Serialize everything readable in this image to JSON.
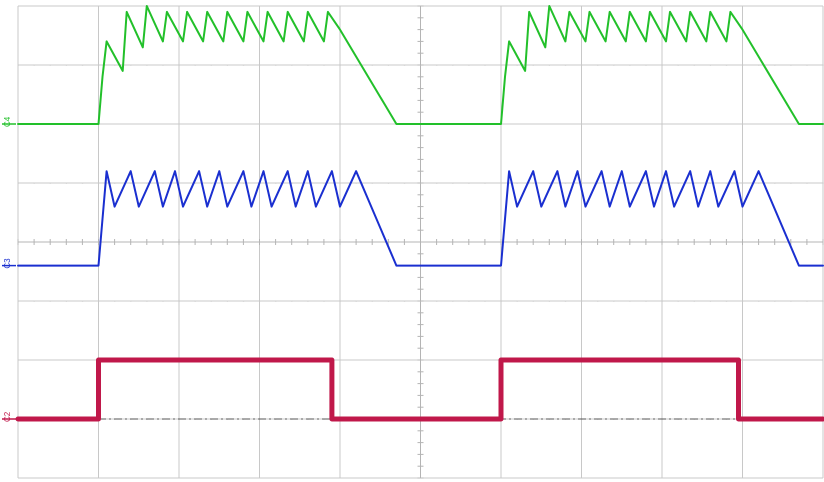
{
  "chart_data": {
    "type": "line",
    "title": "",
    "xlabel": "",
    "ylabel": "",
    "grid": true,
    "divisions": {
      "x": 10,
      "y": 8
    },
    "xlim": [
      0,
      10
    ],
    "ylim": [
      0,
      8
    ],
    "channels": [
      {
        "id": "C4",
        "label": "C4",
        "color": "#22c02a"
      },
      {
        "id": "C3",
        "label": "C3",
        "color": "#1a2fd0"
      },
      {
        "id": "C2",
        "label": "C2",
        "color": "#c0184a"
      }
    ],
    "series": [
      {
        "channel": "C4",
        "color": "#22c02a",
        "x": [
          0.0,
          1.0,
          1.05,
          1.1,
          1.3,
          1.35,
          1.55,
          1.6,
          1.8,
          1.85,
          2.05,
          2.1,
          2.3,
          2.35,
          2.55,
          2.6,
          2.8,
          2.85,
          3.05,
          3.1,
          3.3,
          3.35,
          3.55,
          3.6,
          3.8,
          3.85,
          4.0,
          4.7,
          5.0,
          6.0,
          6.05,
          6.1,
          6.3,
          6.35,
          6.55,
          6.6,
          6.8,
          6.85,
          7.05,
          7.1,
          7.3,
          7.35,
          7.55,
          7.6,
          7.8,
          7.85,
          8.05,
          8.1,
          8.3,
          8.35,
          8.55,
          8.6,
          8.8,
          8.85,
          9.0,
          9.7,
          10.0
        ],
        "y": [
          6.0,
          6.0,
          6.8,
          7.4,
          6.9,
          7.9,
          7.3,
          8.0,
          7.4,
          7.9,
          7.4,
          7.9,
          7.4,
          7.9,
          7.4,
          7.9,
          7.4,
          7.9,
          7.4,
          7.9,
          7.4,
          7.9,
          7.4,
          7.9,
          7.4,
          7.9,
          7.6,
          6.0,
          6.0,
          6.0,
          6.8,
          7.4,
          6.9,
          7.9,
          7.3,
          8.0,
          7.4,
          7.9,
          7.4,
          7.9,
          7.4,
          7.9,
          7.4,
          7.9,
          7.4,
          7.9,
          7.4,
          7.9,
          7.4,
          7.9,
          7.4,
          7.9,
          7.4,
          7.9,
          7.6,
          6.0,
          6.0
        ]
      },
      {
        "channel": "C3",
        "color": "#1a2fd0",
        "x": [
          0.0,
          1.0,
          1.1,
          1.2,
          1.4,
          1.5,
          1.7,
          1.8,
          1.95,
          2.05,
          2.25,
          2.35,
          2.5,
          2.6,
          2.8,
          2.9,
          3.05,
          3.15,
          3.35,
          3.45,
          3.6,
          3.7,
          3.9,
          4.0,
          4.2,
          4.7,
          5.0,
          6.0,
          6.1,
          6.2,
          6.4,
          6.5,
          6.7,
          6.8,
          6.95,
          7.05,
          7.25,
          7.35,
          7.5,
          7.6,
          7.8,
          7.9,
          8.05,
          8.15,
          8.35,
          8.45,
          8.6,
          8.7,
          8.9,
          9.0,
          9.2,
          9.7,
          10.0
        ],
        "y": [
          3.6,
          3.6,
          5.2,
          4.6,
          5.2,
          4.6,
          5.2,
          4.6,
          5.2,
          4.6,
          5.2,
          4.6,
          5.2,
          4.6,
          5.2,
          4.6,
          5.2,
          4.6,
          5.2,
          4.6,
          5.2,
          4.6,
          5.2,
          4.6,
          5.2,
          3.6,
          3.6,
          3.6,
          5.2,
          4.6,
          5.2,
          4.6,
          5.2,
          4.6,
          5.2,
          4.6,
          5.2,
          4.6,
          5.2,
          4.6,
          5.2,
          4.6,
          5.2,
          4.6,
          5.2,
          4.6,
          5.2,
          4.6,
          5.2,
          4.6,
          5.2,
          3.6,
          3.6
        ]
      },
      {
        "channel": "C2",
        "color": "#c0184a",
        "x": [
          0.0,
          1.0,
          1.0,
          3.9,
          3.9,
          6.0,
          6.0,
          8.95,
          8.95,
          10.0
        ],
        "y": [
          1.0,
          1.0,
          2.0,
          2.0,
          1.0,
          1.0,
          2.0,
          2.0,
          1.0,
          1.0
        ]
      }
    ],
    "reference_line": {
      "channel": "C2",
      "y": 1.0
    }
  }
}
